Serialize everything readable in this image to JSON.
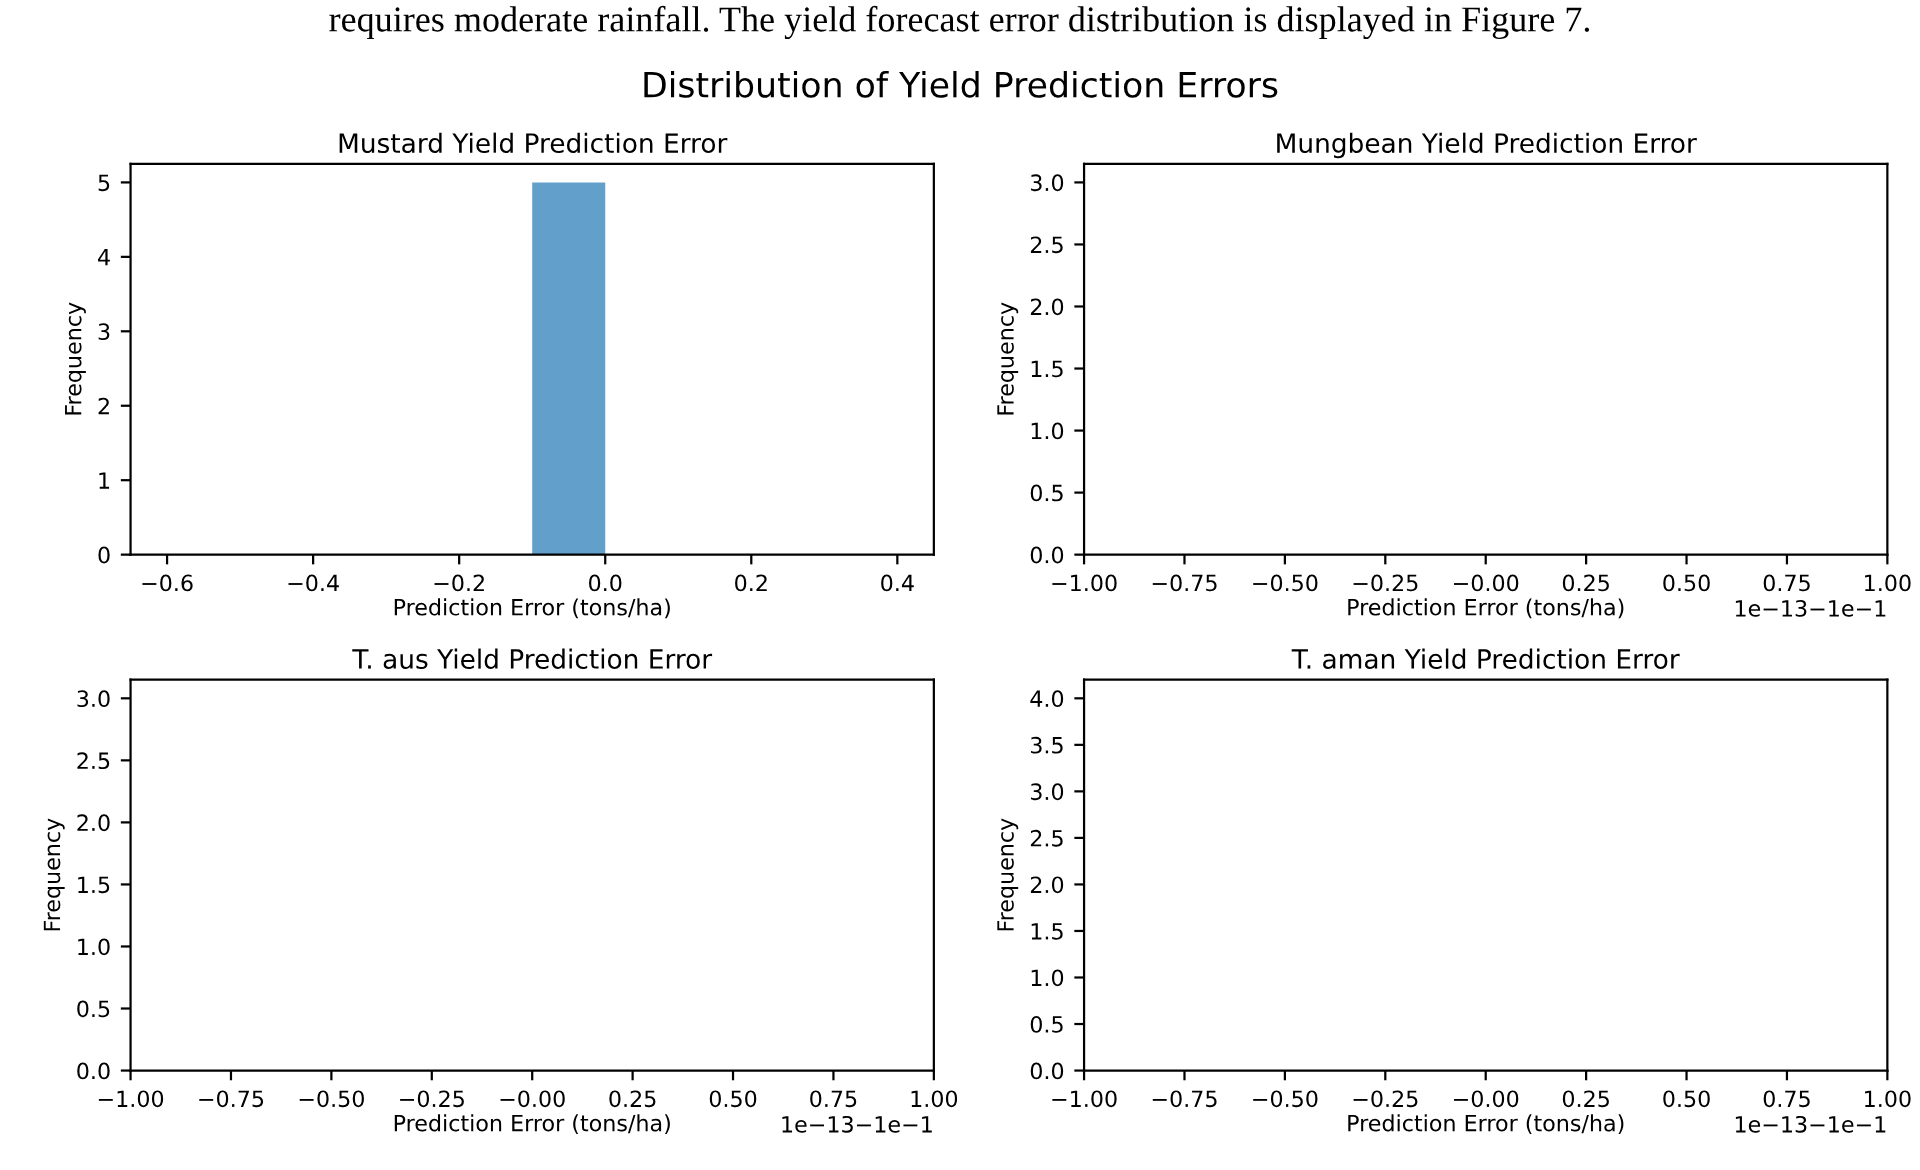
{
  "chart_data": [
    {
      "type": "other",
      "title": "Distribution of Yield Prediction Errors",
      "annotations": [
        "requires moderate rainfall. The yield forecast error distribution is displayed in Figure 7."
      ]
    },
    {
      "type": "histogram",
      "title": "Mustard Yield Prediction Error",
      "xlabel": "Prediction Error (tons/ha)",
      "ylabel": "Frequency",
      "bins": [
        -0.6,
        -0.5,
        -0.4,
        -0.3,
        -0.2,
        -0.1,
        0.0,
        0.1,
        0.2,
        0.3,
        0.4
      ],
      "values": [
        0,
        0,
        0,
        0,
        0,
        5,
        0,
        0,
        0,
        0
      ],
      "color": "#62a0cb",
      "xlim": [
        -0.65,
        0.45
      ],
      "xticks": [
        {
          "value": -0.6,
          "label": "−0.6"
        },
        {
          "value": -0.4,
          "label": "−0.4"
        },
        {
          "value": -0.2,
          "label": "−0.2"
        },
        {
          "value": 0,
          "label": "0.0"
        },
        0.2,
        0.4
      ],
      "ylim": [
        0,
        5.25
      ],
      "yticks": [
        0,
        1,
        2,
        3,
        4,
        5
      ]
    },
    {
      "type": "histogram",
      "title": "Mungbean Yield Prediction Error",
      "xlabel": "Prediction Error (tons/ha)",
      "ylabel": "Frequency",
      "annotations": [
        "1e−13−1e−1"
      ],
      "xlim": [
        -1,
        1
      ],
      "xticks": [
        {
          "value": -1,
          "label": "−1.00"
        },
        {
          "value": -0.75,
          "label": "−0.75"
        },
        {
          "value": -0.5,
          "label": "−0.50"
        },
        {
          "value": -0.25,
          "label": "−0.25"
        },
        {
          "value": 0,
          "label": "−0.00"
        },
        0.25,
        {
          "value": 0.5,
          "label": "0.50"
        },
        0.75,
        {
          "value": 1,
          "label": "1.00"
        }
      ],
      "ylim": [
        0,
        3.15
      ],
      "yticks": [
        {
          "value": 0,
          "label": "0.0"
        },
        0.5,
        {
          "value": 1,
          "label": "1.0"
        },
        1.5,
        {
          "value": 2,
          "label": "2.0"
        },
        2.5,
        {
          "value": 3,
          "label": "3.0"
        }
      ]
    },
    {
      "type": "histogram",
      "title": "T. aus Yield Prediction Error",
      "xlabel": "Prediction Error (tons/ha)",
      "ylabel": "Frequency",
      "annotations": [
        "1e−13−1e−1"
      ],
      "xlim": [
        -1,
        1
      ],
      "xticks": [
        {
          "value": -1,
          "label": "−1.00"
        },
        {
          "value": -0.75,
          "label": "−0.75"
        },
        {
          "value": -0.5,
          "label": "−0.50"
        },
        {
          "value": -0.25,
          "label": "−0.25"
        },
        {
          "value": 0,
          "label": "−0.00"
        },
        0.25,
        {
          "value": 0.5,
          "label": "0.50"
        },
        0.75,
        {
          "value": 1,
          "label": "1.00"
        }
      ],
      "ylim": [
        0,
        3.15
      ],
      "yticks": [
        {
          "value": 0,
          "label": "0.0"
        },
        0.5,
        {
          "value": 1,
          "label": "1.0"
        },
        1.5,
        {
          "value": 2,
          "label": "2.0"
        },
        2.5,
        {
          "value": 3,
          "label": "3.0"
        }
      ]
    },
    {
      "type": "histogram",
      "title": "T. aman Yield Prediction Error",
      "xlabel": "Prediction Error (tons/ha)",
      "ylabel": "Frequency",
      "annotations": [
        "1e−13−1e−1"
      ],
      "xlim": [
        -1,
        1
      ],
      "xticks": [
        {
          "value": -1,
          "label": "−1.00"
        },
        {
          "value": -0.75,
          "label": "−0.75"
        },
        {
          "value": -0.5,
          "label": "−0.50"
        },
        {
          "value": -0.25,
          "label": "−0.25"
        },
        {
          "value": 0,
          "label": "−0.00"
        },
        0.25,
        {
          "value": 0.5,
          "label": "0.50"
        },
        0.75,
        {
          "value": 1,
          "label": "1.00"
        }
      ],
      "ylim": [
        0,
        4.2
      ],
      "yticks": [
        {
          "value": 0,
          "label": "0.0"
        },
        0.5,
        {
          "value": 1,
          "label": "1.0"
        },
        1.5,
        {
          "value": 2,
          "label": "2.0"
        },
        2.5,
        {
          "value": 3,
          "label": "3.0"
        },
        3.5,
        {
          "value": 4,
          "label": "4.0"
        }
      ]
    }
  ]
}
